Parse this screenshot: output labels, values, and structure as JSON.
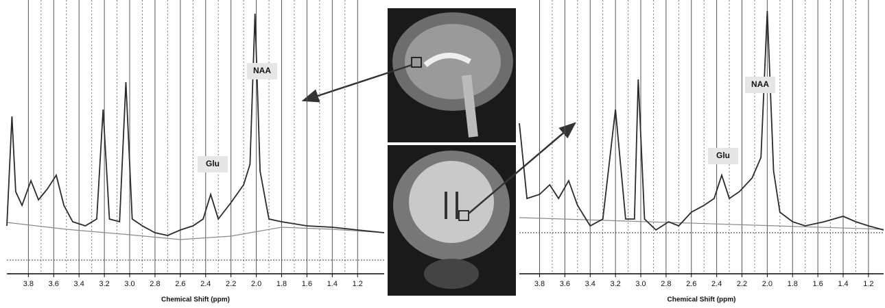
{
  "chart_data": [
    {
      "type": "line",
      "x_label": "Chemical Shift (ppm)",
      "xlim": [
        3.97,
        0.99
      ],
      "ylim": [
        0,
        100
      ],
      "grid": true,
      "xticks": [
        3.8,
        3.6,
        3.4,
        3.2,
        {
          "value": 3,
          "label": "3.0"
        },
        2.8,
        2.6,
        2.4,
        2.2,
        {
          "value": 2,
          "label": "2.0"
        },
        1.8,
        1.6,
        1.4,
        1.2
      ],
      "reference_line": 5,
      "annotations": [
        "NAA",
        "Glu"
      ],
      "series": [
        {
          "color": "#2a2a2a",
          "x": [
            3.97,
            3.93,
            3.9,
            3.85,
            3.78,
            3.72,
            3.65,
            3.58,
            3.52,
            3.45,
            3.35,
            3.26,
            3.21,
            3.16,
            3.08,
            3.03,
            2.98,
            2.9,
            2.8,
            2.7,
            2.6,
            2.5,
            2.42,
            2.36,
            2.3,
            2.2,
            2.1,
            2.05,
            2.01,
            1.97,
            1.9,
            1.8,
            1.6,
            1.4,
            1.2,
            0.99
          ],
          "values": [
            17.5,
            57.5,
            30,
            25,
            34,
            27,
            31,
            36,
            25,
            19,
            17.5,
            20,
            60,
            20,
            19,
            70,
            20,
            17.5,
            15,
            14,
            16,
            17.5,
            20,
            29,
            20,
            26,
            32.5,
            40,
            95,
            37.5,
            20,
            19,
            17.5,
            17,
            16,
            15
          ]
        },
        {
          "color": "#888888",
          "x": [
            3.97,
            3.5,
            3.0,
            2.6,
            2.2,
            1.8,
            1.4,
            0.99
          ],
          "values": [
            18.75,
            16.25,
            14.25,
            12.5,
            13.75,
            17,
            16.25,
            15
          ]
        }
      ]
    },
    {
      "type": "line",
      "x_label": "Chemical Shift (ppm)",
      "xlim": [
        3.96,
        1.08
      ],
      "ylim": [
        0,
        100
      ],
      "grid": true,
      "xticks": [
        3.8,
        3.6,
        3.4,
        3.2,
        {
          "value": 3,
          "label": "3.0"
        },
        2.8,
        2.6,
        2.4,
        2.2,
        {
          "value": 2,
          "label": "2.0"
        },
        1.8,
        1.6,
        1.4,
        1.2
      ],
      "reference_line": 15,
      "annotations": [
        "NAA",
        "Glu"
      ],
      "series": [
        {
          "color": "#2a2a2a",
          "x": [
            3.96,
            3.9,
            3.8,
            3.72,
            3.65,
            3.57,
            3.5,
            3.4,
            3.3,
            3.2,
            3.12,
            3.05,
            3.02,
            2.97,
            2.88,
            2.78,
            2.7,
            2.6,
            2.5,
            2.42,
            2.36,
            2.3,
            2.22,
            2.12,
            2.05,
            2.0,
            1.95,
            1.9,
            1.8,
            1.7,
            1.55,
            1.4,
            1.3,
            1.2,
            1.08
          ],
          "values": [
            55,
            27.5,
            29,
            32.5,
            27.5,
            34,
            25,
            17.5,
            20,
            60,
            20,
            20,
            71,
            20,
            16,
            19,
            17.5,
            22.5,
            25,
            27.5,
            36,
            27.5,
            30,
            35,
            42.5,
            96,
            37.5,
            22.5,
            19,
            17.5,
            19,
            21,
            19,
            17.5,
            16
          ]
        },
        {
          "color": "#888888",
          "x": [
            3.96,
            1.08
          ],
          "values": [
            20.5,
            16.25
          ]
        }
      ]
    }
  ]
}
